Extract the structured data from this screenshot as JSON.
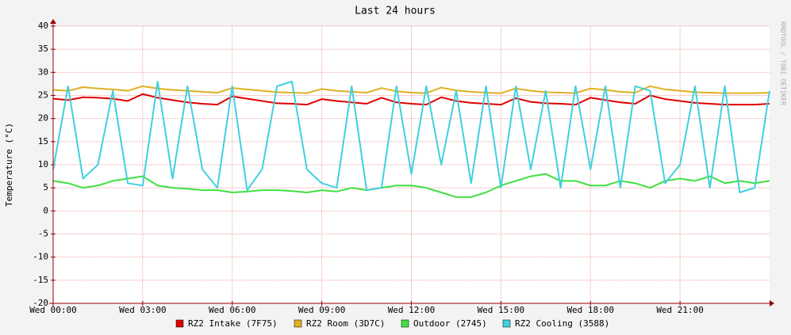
{
  "chart_data": {
    "type": "line",
    "title": "Last 24 hours",
    "y_label": "Temperature (°C)",
    "side_text": "RRDTOOL / TOBI OETIKER",
    "x": [
      0,
      0.5,
      1,
      1.5,
      2,
      2.5,
      3,
      3.5,
      4,
      4.5,
      5,
      5.5,
      6,
      6.5,
      7,
      7.5,
      8,
      8.5,
      9,
      9.5,
      10,
      10.5,
      11,
      11.5,
      12,
      12.5,
      13,
      13.5,
      14,
      14.5,
      15,
      15.5,
      16,
      16.5,
      17,
      17.5,
      18,
      18.5,
      19,
      19.5,
      20,
      20.5,
      21,
      21.5,
      22,
      22.5,
      23,
      23.5,
      24
    ],
    "xlim": [
      0,
      24
    ],
    "xticks": [
      {
        "value": 0,
        "label": "Wed 00:00"
      },
      {
        "value": 3,
        "label": "Wed 03:00"
      },
      {
        "value": 6,
        "label": "Wed 06:00"
      },
      {
        "value": 9,
        "label": "Wed 09:00"
      },
      {
        "value": 12,
        "label": "Wed 12:00"
      },
      {
        "value": 15,
        "label": "Wed 15:00"
      },
      {
        "value": 18,
        "label": "Wed 18:00"
      },
      {
        "value": 21,
        "label": "Wed 21:00"
      }
    ],
    "ylim": [
      -20,
      40
    ],
    "yticks": [
      -20,
      -15,
      -10,
      -5,
      0,
      5,
      10,
      15,
      20,
      25,
      30,
      35,
      40
    ],
    "grid": true,
    "series": [
      {
        "name": "RZ2 Intake (7F75)",
        "color": "#e00000",
        "values": [
          24.3,
          24.0,
          24.6,
          24.5,
          24.3,
          23.8,
          25.3,
          24.5,
          24.0,
          23.5,
          23.2,
          23.0,
          24.8,
          24.3,
          23.8,
          23.3,
          23.2,
          23.0,
          24.2,
          23.8,
          23.5,
          23.2,
          24.5,
          23.5,
          23.2,
          23.0,
          24.6,
          23.8,
          23.4,
          23.2,
          23.0,
          24.4,
          23.6,
          23.3,
          23.2,
          23.0,
          24.5,
          24.0,
          23.5,
          23.2,
          25.0,
          24.2,
          23.8,
          23.4,
          23.2,
          23.0,
          23.0,
          23.0,
          23.2
        ]
      },
      {
        "name": "RZ2 Room (3D7C)",
        "color": "#e0b020",
        "values": [
          26.2,
          26.0,
          26.8,
          26.5,
          26.3,
          26.0,
          27.0,
          26.5,
          26.2,
          26.0,
          25.8,
          25.6,
          26.6,
          26.3,
          26.0,
          25.7,
          25.6,
          25.5,
          26.4,
          26.0,
          25.8,
          25.6,
          26.6,
          25.9,
          25.6,
          25.5,
          26.7,
          26.1,
          25.8,
          25.6,
          25.5,
          26.5,
          26.0,
          25.7,
          25.6,
          25.5,
          26.5,
          26.2,
          25.8,
          25.6,
          27.0,
          26.3,
          26.0,
          25.7,
          25.6,
          25.5,
          25.5,
          25.5,
          25.6
        ]
      },
      {
        "name": "Outdoor (2745)",
        "color": "#40e040",
        "values": [
          6.5,
          6.0,
          5.0,
          5.5,
          6.5,
          7.0,
          7.5,
          5.5,
          5.0,
          4.8,
          4.5,
          4.5,
          4.0,
          4.2,
          4.5,
          4.5,
          4.3,
          4.0,
          4.5,
          4.2,
          5.0,
          4.5,
          5.0,
          5.5,
          5.5,
          5.0,
          4.0,
          3.0,
          3.0,
          4.0,
          5.5,
          6.5,
          7.5,
          8.0,
          6.5,
          6.5,
          5.5,
          5.5,
          6.5,
          6.0,
          5.0,
          6.5,
          7.0,
          6.5,
          7.5,
          6.0,
          6.5,
          6.0,
          6.5
        ]
      },
      {
        "name": "RZ2 Cooling (3588)",
        "color": "#40d0e0",
        "values": [
          9,
          27,
          7,
          10,
          26,
          6,
          5.5,
          28,
          7,
          27,
          9,
          5,
          27,
          4.5,
          9,
          27,
          28,
          9,
          6,
          5,
          27,
          4.5,
          5,
          27,
          8,
          27,
          10,
          26,
          6,
          27,
          5,
          27,
          9,
          26,
          5,
          27,
          9,
          27,
          5,
          27,
          26,
          6,
          10,
          27,
          5,
          27,
          4,
          5,
          26
        ]
      }
    ]
  }
}
